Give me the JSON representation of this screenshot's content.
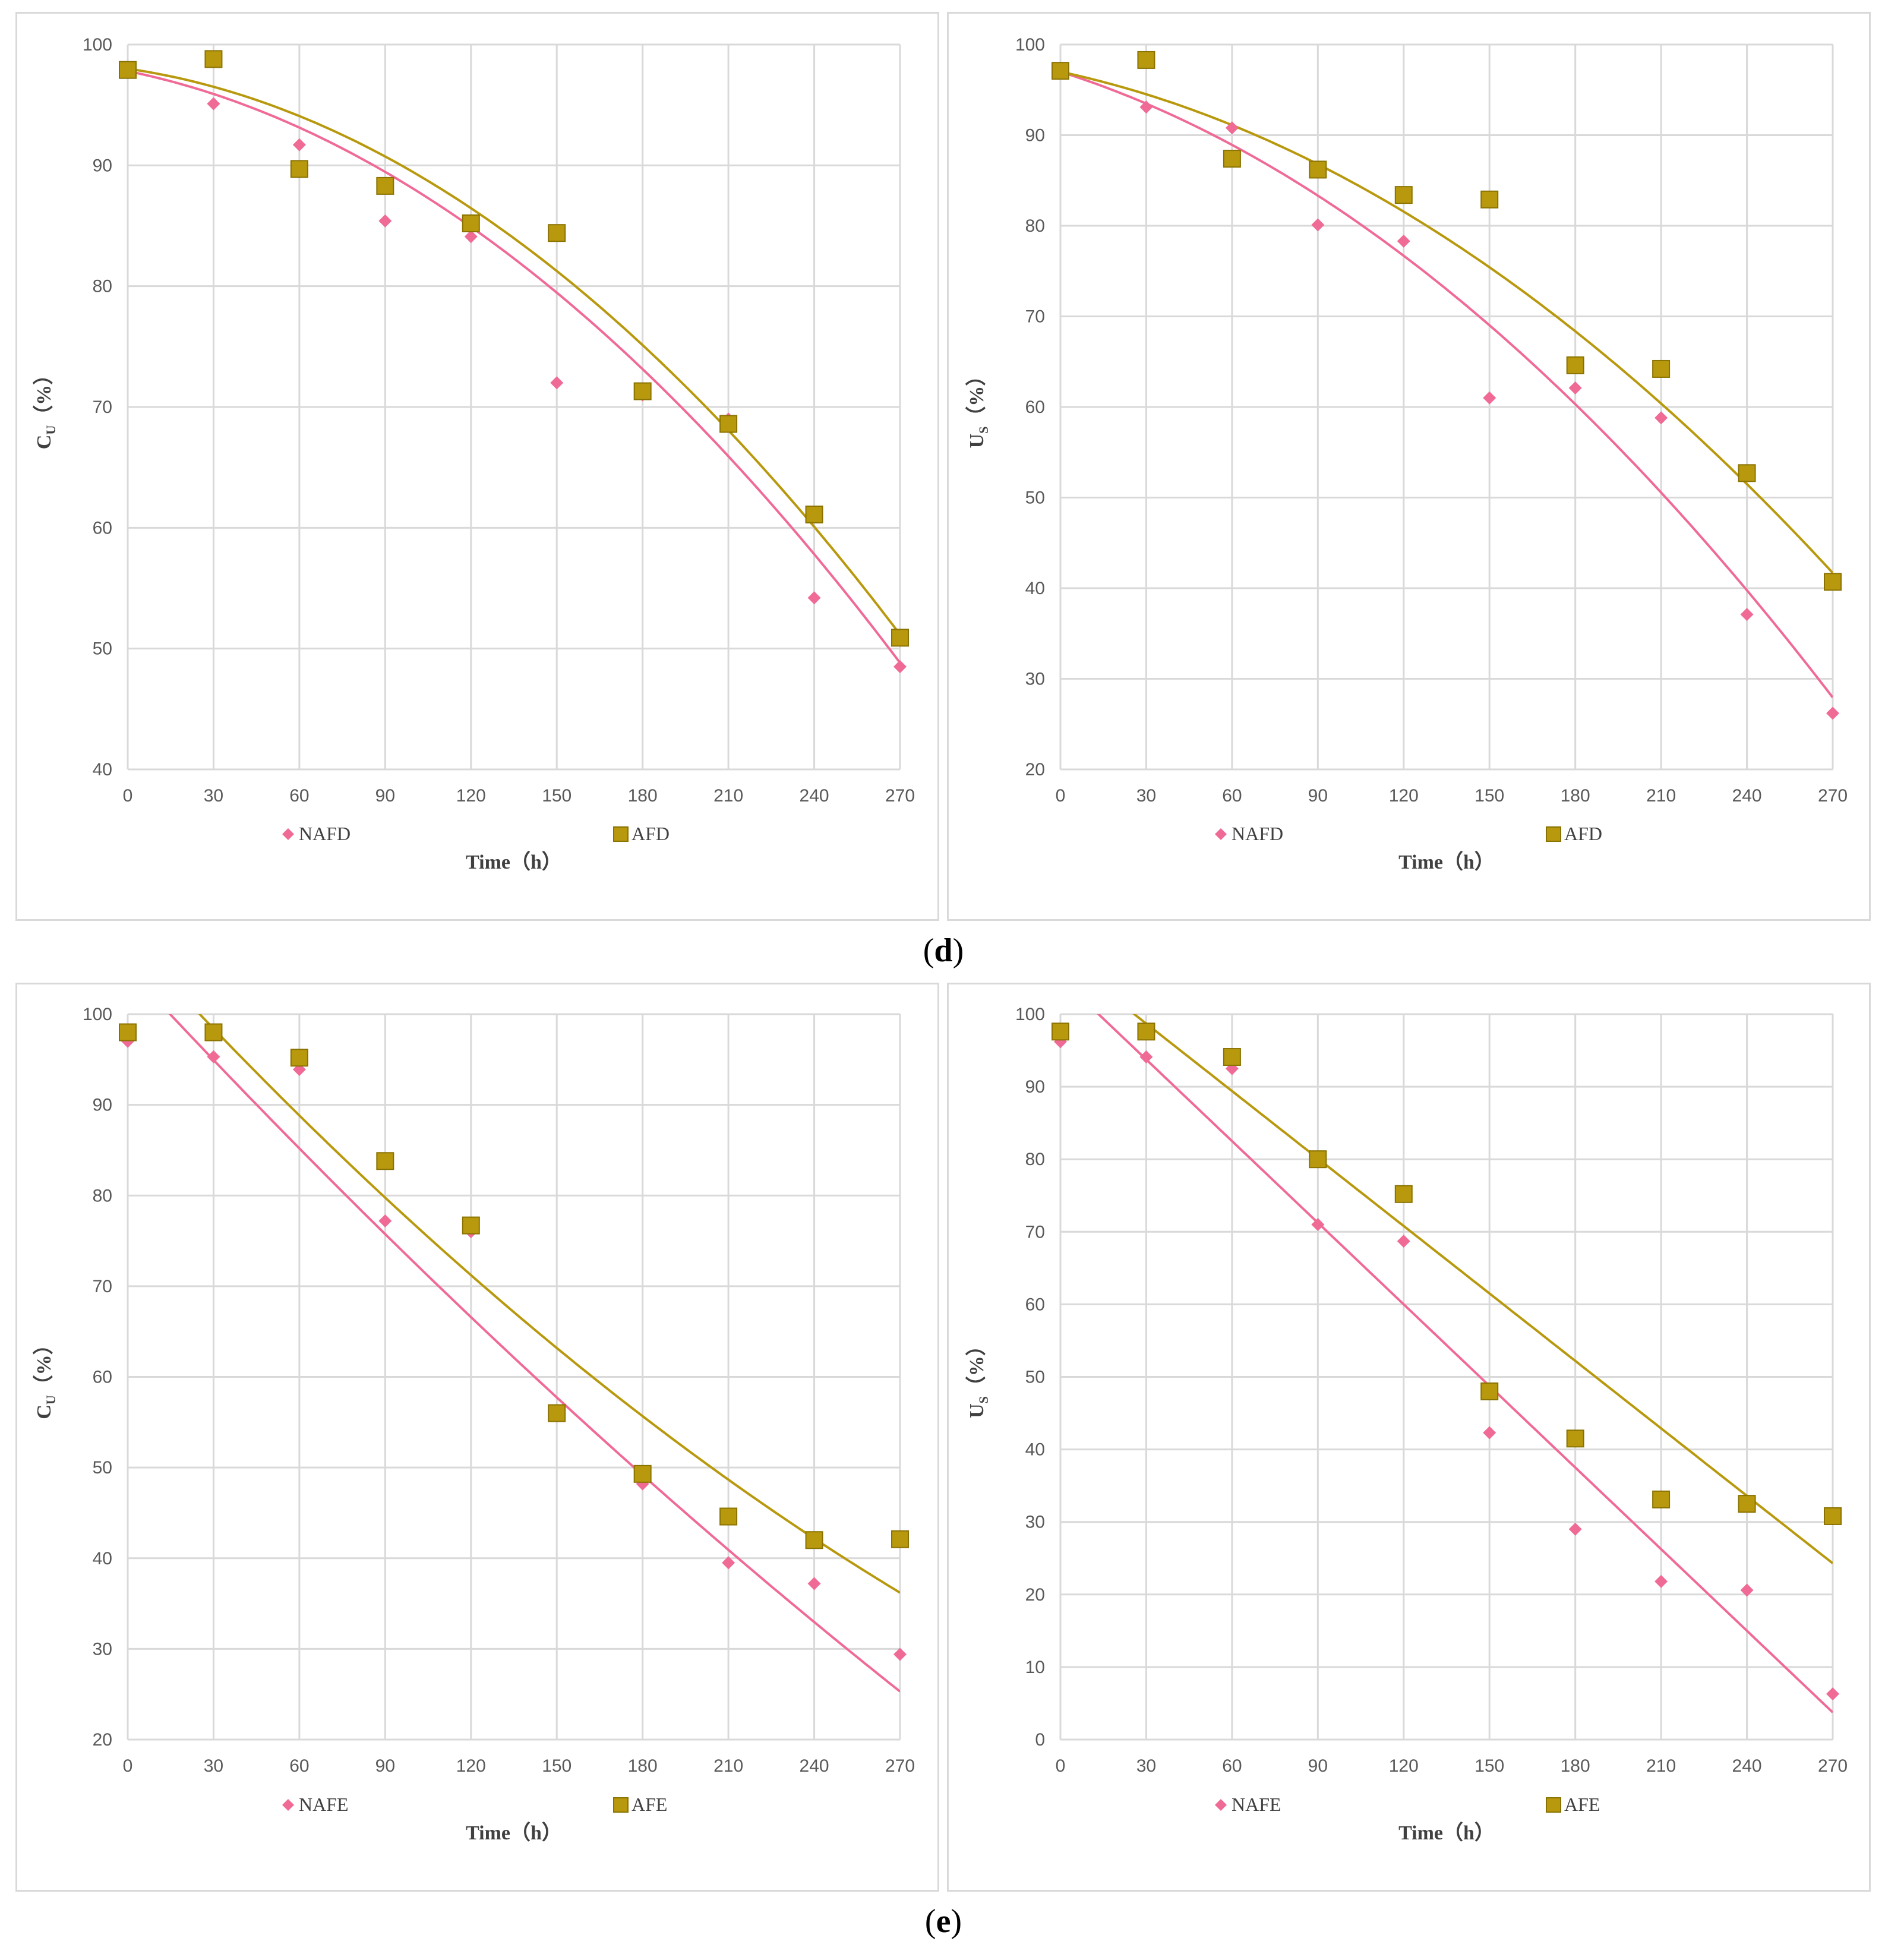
{
  "colors": {
    "nonAF": "#f06a96",
    "AF": "#b8990e",
    "grid": "#d9d9d9",
    "tick": "#595959",
    "text": "#404040"
  },
  "panel_labels": {
    "d": "d",
    "e": "e"
  },
  "chart_data": [
    {
      "type": "scatter",
      "ylabel_main": "C",
      "ylabel_sub": "U",
      "ylabel_unit": "（%）",
      "xlabel": "Time（h）",
      "x_ticks": [
        0,
        30,
        60,
        90,
        120,
        150,
        180,
        210,
        240,
        270
      ],
      "y_ticks": [
        40,
        50,
        60,
        70,
        80,
        90,
        100
      ],
      "xlim": [
        0,
        270
      ],
      "ylim": [
        40,
        100
      ],
      "series": [
        {
          "name": "NAFD",
          "marker": "diamond",
          "x": [
            0,
            30,
            60,
            90,
            120,
            150,
            180,
            210,
            240,
            270
          ],
          "values": [
            97.7,
            95.1,
            91.7,
            85.4,
            84.1,
            72.0,
            71.0,
            69.0,
            54.2,
            48.5
          ],
          "trend": [
            97.8,
            -0.0483,
            -0.000493
          ]
        },
        {
          "name": "AFD",
          "marker": "square",
          "x": [
            0,
            30,
            60,
            90,
            120,
            150,
            180,
            210,
            240,
            270
          ],
          "values": [
            97.9,
            98.8,
            89.7,
            88.3,
            85.2,
            84.4,
            71.3,
            68.6,
            61.1,
            50.9
          ],
          "trend": [
            98.0,
            -0.0344,
            -0.000515
          ]
        }
      ]
    },
    {
      "type": "scatter",
      "ylabel_main": "U",
      "ylabel_sub": "S",
      "ylabel_unit": "（%）",
      "xlabel": "Time（h）",
      "x_ticks": [
        0,
        30,
        60,
        90,
        120,
        150,
        180,
        210,
        240,
        270
      ],
      "y_ticks": [
        20,
        30,
        40,
        50,
        60,
        70,
        80,
        90,
        100
      ],
      "xlim": [
        0,
        270
      ],
      "ylim": [
        20,
        100
      ],
      "series": [
        {
          "name": "NAFD",
          "marker": "diamond",
          "x": [
            0,
            30,
            60,
            90,
            120,
            150,
            180,
            210,
            240,
            270
          ],
          "values": [
            96.9,
            93.1,
            90.8,
            80.1,
            78.3,
            61.0,
            62.1,
            58.8,
            37.1,
            26.2
          ],
          "trend": [
            97.0,
            -0.1,
            -0.000577
          ]
        },
        {
          "name": "AFD",
          "marker": "square",
          "x": [
            0,
            30,
            60,
            90,
            120,
            150,
            180,
            210,
            240,
            270
          ],
          "values": [
            97.1,
            98.3,
            87.4,
            86.2,
            83.4,
            82.9,
            64.6,
            64.2,
            52.7,
            40.7
          ],
          "trend": [
            97.0,
            -0.0677,
            -0.000508
          ]
        }
      ]
    },
    {
      "type": "scatter",
      "ylabel_main": "C",
      "ylabel_sub": "U",
      "ylabel_unit": "（%）",
      "xlabel": "Time（h）",
      "x_ticks": [
        0,
        30,
        60,
        90,
        120,
        150,
        180,
        210,
        240,
        270
      ],
      "y_ticks": [
        20,
        30,
        40,
        50,
        60,
        70,
        80,
        90,
        100
      ],
      "xlim": [
        0,
        270
      ],
      "ylim": [
        20,
        100
      ],
      "series": [
        {
          "name": "NAFE",
          "marker": "diamond",
          "x": [
            0,
            30,
            60,
            90,
            120,
            150,
            180,
            210,
            240,
            270
          ],
          "values": [
            97.0,
            95.3,
            93.9,
            77.2,
            76.0,
            55.8,
            48.2,
            39.5,
            37.2,
            29.4
          ],
          "trend": [
            105.0,
            -0.34,
            0.000166
          ]
        },
        {
          "name": "AFE",
          "marker": "square",
          "x": [
            0,
            30,
            60,
            90,
            120,
            150,
            180,
            210,
            240,
            270
          ],
          "values": [
            98.0,
            98.0,
            95.2,
            83.8,
            76.7,
            56.0,
            49.3,
            44.6,
            42.0,
            42.1
          ],
          "trend": [
            108.5,
            -0.345,
            0.000286
          ]
        }
      ]
    },
    {
      "type": "scatter",
      "ylabel_main": "U",
      "ylabel_sub": "S",
      "ylabel_unit": "（%）",
      "xlabel": "Time（h）",
      "x_ticks": [
        0,
        30,
        60,
        90,
        120,
        150,
        180,
        210,
        240,
        270
      ],
      "y_ticks": [
        0,
        10,
        20,
        30,
        40,
        50,
        60,
        70,
        80,
        90,
        100
      ],
      "xlim": [
        0,
        270
      ],
      "ylim": [
        0,
        100
      ],
      "series": [
        {
          "name": "NAFE",
          "marker": "diamond",
          "x": [
            0,
            30,
            60,
            90,
            120,
            150,
            180,
            210,
            240,
            270
          ],
          "values": [
            96.2,
            94.1,
            92.5,
            71.0,
            68.7,
            42.3,
            29.0,
            21.8,
            20.6,
            6.3
          ],
          "trend": [
            105.0,
            -0.375,
            0.0
          ]
        },
        {
          "name": "AFE",
          "marker": "square",
          "x": [
            0,
            30,
            60,
            90,
            120,
            150,
            180,
            210,
            240,
            270
          ],
          "values": [
            97.6,
            97.6,
            94.1,
            80.0,
            75.2,
            48.0,
            41.5,
            33.1,
            32.5,
            30.8
          ],
          "trend": [
            108.0,
            -0.31,
            0.0
          ]
        }
      ]
    }
  ]
}
